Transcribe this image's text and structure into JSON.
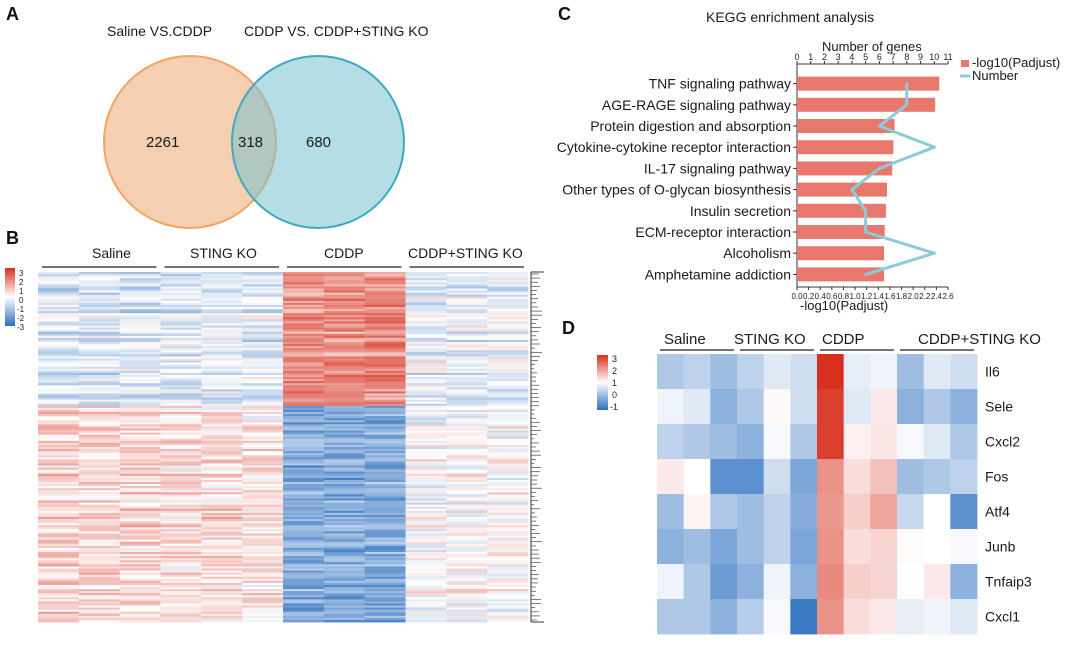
{
  "panels": {
    "a": "A",
    "b": "B",
    "c": "C",
    "d": "D"
  },
  "colors": {
    "venn_left": "#f2c7a4",
    "venn_left_stroke": "#f3a45d",
    "venn_right": "#79c1cf",
    "venn_right_stroke": "#3ea9bf",
    "bar": "#e8776c",
    "line": "#8ccbdc",
    "heat_high": "#d7301f",
    "heat_mid": "#ffffff",
    "heat_low": "#2c6fbf"
  },
  "chart_data": [
    {
      "type": "venn",
      "sets": [
        {
          "name": "Saline VS.CDDP",
          "only": 2261
        },
        {
          "name": "CDDP VS. CDDP+STING KO",
          "only": 680
        }
      ],
      "overlap": 318
    },
    {
      "type": "heatmap",
      "groups": [
        "Saline",
        "STING KO",
        "CDDP",
        "CDDP+STING KO"
      ],
      "legend_ticks": [
        "3",
        "2",
        "1",
        "0",
        "-1",
        "-2",
        "-3"
      ],
      "scale_range": [
        -3,
        3
      ],
      "cluster_profile": [
        {
          "fraction": 0.38,
          "group_means": [
            -0.55,
            -0.45,
            1.6,
            -0.35
          ]
        },
        {
          "fraction": 0.62,
          "group_means": [
            0.6,
            0.45,
            -1.7,
            0.0
          ]
        }
      ]
    },
    {
      "type": "bar",
      "title": "KEGG enrichment analysis",
      "top_axis_label": "Number of genes",
      "top_axis_ticks": [
        "0",
        "1",
        "2",
        "3",
        "4",
        "5",
        "6",
        "7",
        "8",
        "9",
        "10",
        "11"
      ],
      "bottom_axis_label": "-log10(Padjust)",
      "bottom_axis_ticks": [
        "0.0",
        "0.2",
        "0.4",
        "0.6",
        "0.8",
        "1.0",
        "1.2",
        "1.4",
        "1.6",
        "1.8",
        "2.0",
        "2.2",
        "2.4",
        "2.6"
      ],
      "bottom_range": [
        0,
        2.6
      ],
      "top_range": [
        0,
        11
      ],
      "legend": [
        "-log10(Padjust)",
        "Number"
      ],
      "categories": [
        "TNF signaling pathway",
        "AGE-RAGE signaling pathway",
        "Protein digestion and absorption",
        "Cytokine-cytokine receptor interaction",
        "IL-17 signaling pathway",
        "Other types of O-glycan biosynthesis",
        "Insulin secretion",
        "ECM-receptor interaction",
        "Alcoholism",
        "Amphetamine addiction"
      ],
      "padjust_log10": [
        2.45,
        2.38,
        1.68,
        1.66,
        1.64,
        1.55,
        1.53,
        1.51,
        1.5,
        1.5
      ],
      "gene_counts": [
        8,
        8,
        6,
        10,
        6,
        4,
        5,
        5,
        10,
        5
      ]
    },
    {
      "type": "heatmap",
      "groups": [
        "Saline",
        "STING KO",
        "CDDP",
        "CDDP+STING KO"
      ],
      "legend_ticks": [
        "3",
        "2",
        "1",
        "0",
        "-1"
      ],
      "scale_range": [
        -1,
        3
      ],
      "genes": [
        "Il6",
        "Sele",
        "Cxcl2",
        "Fos",
        "Atf4",
        "Junb",
        "Tnfaip3",
        "Cxcl1"
      ],
      "matrix": [
        [
          -0.5,
          -0.4,
          -0.6,
          -0.4,
          -0.2,
          -0.3,
          3.0,
          -0.15,
          -0.1,
          -0.6,
          -0.2,
          -0.3
        ],
        [
          -0.1,
          -0.2,
          -0.7,
          -0.5,
          0.1,
          -0.3,
          2.8,
          -0.2,
          0.3,
          -0.7,
          -0.5,
          -0.7
        ],
        [
          -0.4,
          -0.5,
          -0.6,
          -0.7,
          -0.05,
          -0.5,
          2.8,
          0.2,
          0.35,
          -0.05,
          -0.2,
          -0.5
        ],
        [
          0.3,
          0.0,
          -1.0,
          -1.0,
          -0.3,
          -0.8,
          1.6,
          0.5,
          0.9,
          -0.6,
          -0.5,
          -0.4
        ],
        [
          -0.6,
          0.15,
          -0.5,
          -0.6,
          -0.4,
          -0.75,
          1.5,
          0.7,
          1.3,
          -0.35,
          0.0,
          -1.0
        ],
        [
          -0.7,
          -0.6,
          -0.8,
          -0.6,
          -0.4,
          -0.8,
          1.6,
          0.5,
          0.6,
          0.05,
          0.0,
          -0.05
        ],
        [
          -0.1,
          -0.5,
          -0.9,
          -0.7,
          -0.1,
          -0.7,
          1.7,
          0.7,
          0.6,
          0.0,
          0.3,
          -0.7
        ],
        [
          -0.5,
          -0.5,
          -0.7,
          -0.45,
          -0.05,
          -1.2,
          1.6,
          0.5,
          0.3,
          -0.15,
          -0.1,
          -0.2
        ]
      ]
    }
  ]
}
